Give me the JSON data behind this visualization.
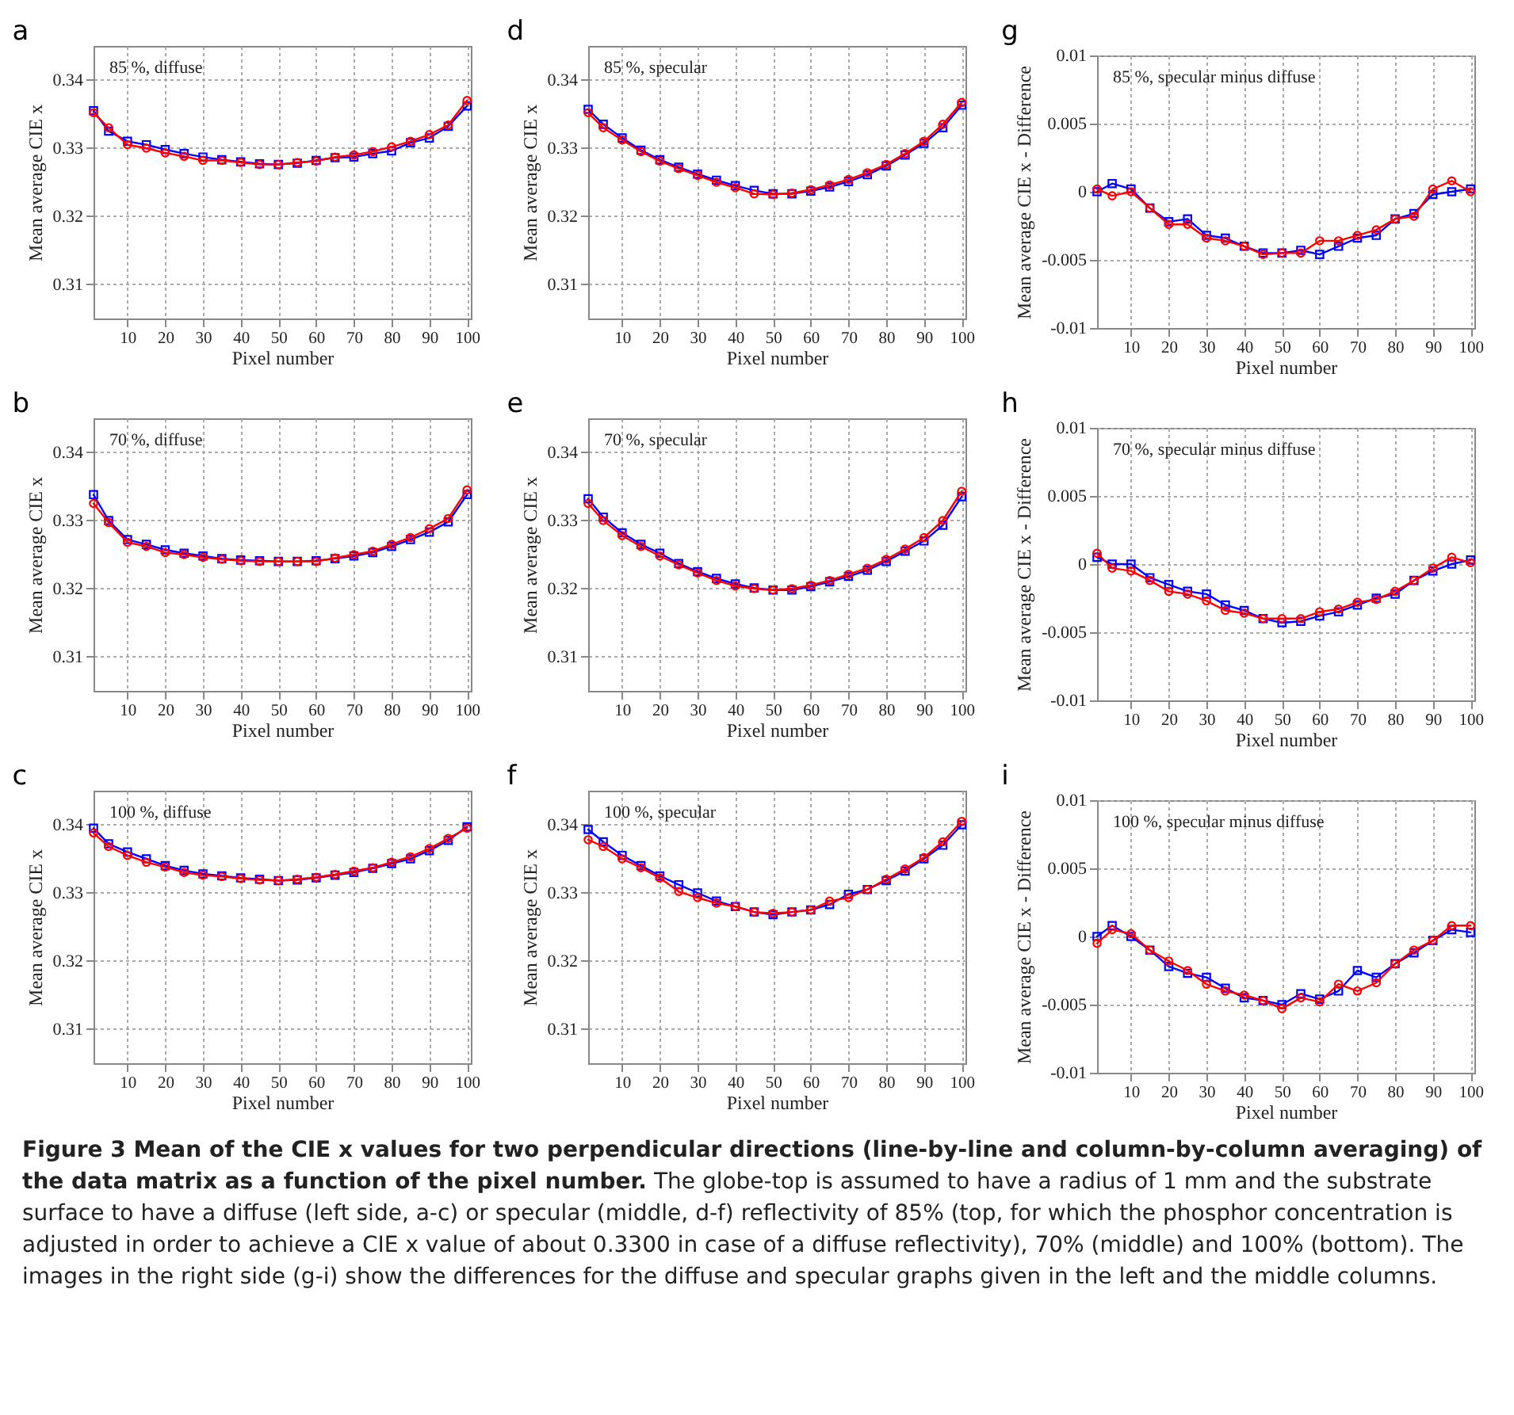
{
  "chart_data": [
    {
      "type": "line",
      "title": "a",
      "annotations": [
        "85 %, diffuse"
      ],
      "xlabel": "Pixel number",
      "ylabel": "Mean average CIE x",
      "xlim": [
        1,
        101
      ],
      "xticks": [
        10,
        20,
        30,
        40,
        50,
        60,
        70,
        80,
        90,
        100
      ],
      "ylim": [
        0.305,
        0.345
      ],
      "yticks": [
        0.31,
        0.32,
        0.33,
        0.34
      ],
      "grid": true,
      "line_style": "solid",
      "x": [
        1,
        5,
        10,
        15,
        20,
        25,
        30,
        35,
        40,
        45,
        50,
        55,
        60,
        65,
        70,
        75,
        80,
        85,
        90,
        95,
        100
      ],
      "series": [
        {
          "color": "#0000ff",
          "marker": "square",
          "values": [
            0.3355,
            0.3325,
            0.331,
            0.3305,
            0.3298,
            0.3292,
            0.3287,
            0.3283,
            0.328,
            0.3277,
            0.3276,
            0.3278,
            0.3282,
            0.3286,
            0.3287,
            0.3292,
            0.3296,
            0.3308,
            0.3315,
            0.3332,
            0.3362
          ]
        },
        {
          "color": "#ff0000",
          "marker": "circle",
          "values": [
            0.3352,
            0.333,
            0.3305,
            0.33,
            0.3293,
            0.3288,
            0.3282,
            0.3282,
            0.3279,
            0.3276,
            0.3276,
            0.3279,
            0.3281,
            0.3287,
            0.329,
            0.3295,
            0.3302,
            0.331,
            0.332,
            0.3334,
            0.337
          ]
        }
      ]
    },
    {
      "type": "line",
      "title": "d",
      "annotations": [
        "85 %, specular"
      ],
      "xlabel": "Pixel number",
      "ylabel": "Mean average CIE x",
      "xlim": [
        1,
        101
      ],
      "xticks": [
        10,
        20,
        30,
        40,
        50,
        60,
        70,
        80,
        90,
        100
      ],
      "ylim": [
        0.305,
        0.345
      ],
      "yticks": [
        0.31,
        0.32,
        0.33,
        0.34
      ],
      "grid": true,
      "line_style": "solid",
      "x": [
        1,
        5,
        10,
        15,
        20,
        25,
        30,
        35,
        40,
        45,
        50,
        55,
        60,
        65,
        70,
        75,
        80,
        85,
        90,
        95,
        100
      ],
      "series": [
        {
          "color": "#0000ff",
          "marker": "square",
          "values": [
            0.3357,
            0.3335,
            0.3315,
            0.3297,
            0.3283,
            0.3272,
            0.3262,
            0.3253,
            0.3245,
            0.3238,
            0.3233,
            0.3233,
            0.3237,
            0.3243,
            0.3251,
            0.3261,
            0.3274,
            0.329,
            0.3307,
            0.333,
            0.3363
          ]
        },
        {
          "color": "#ff0000",
          "marker": "circle",
          "values": [
            0.3352,
            0.333,
            0.3312,
            0.3295,
            0.3281,
            0.327,
            0.326,
            0.325,
            0.3242,
            0.3233,
            0.3232,
            0.3234,
            0.3239,
            0.3246,
            0.3254,
            0.3264,
            0.3276,
            0.3292,
            0.331,
            0.3335,
            0.3367
          ]
        }
      ]
    },
    {
      "type": "line",
      "title": "g",
      "annotations": [
        "85 %, specular minus diffuse"
      ],
      "xlabel": "Pixel number",
      "ylabel": "Mean average CIE x - Difference",
      "xlim": [
        1,
        101
      ],
      "xticks": [
        10,
        20,
        30,
        40,
        50,
        60,
        70,
        80,
        90,
        100
      ],
      "ylim": [
        -0.01,
        0.01
      ],
      "yticks": [
        -0.01,
        -0.005,
        0,
        0.005,
        0.01
      ],
      "grid": true,
      "line_style": "solid",
      "x": [
        1,
        5,
        10,
        15,
        20,
        25,
        30,
        35,
        40,
        45,
        50,
        55,
        60,
        65,
        70,
        75,
        80,
        85,
        90,
        95,
        100
      ],
      "series": [
        {
          "color": "#0000ff",
          "marker": "square",
          "values": [
            0,
            0.0006,
            0.0002,
            -0.0012,
            -0.0022,
            -0.002,
            -0.0032,
            -0.0034,
            -0.004,
            -0.0045,
            -0.0045,
            -0.0043,
            -0.0046,
            -0.004,
            -0.0034,
            -0.0032,
            -0.002,
            -0.0016,
            -0.0002,
            0,
            0.0002
          ]
        },
        {
          "color": "#ff0000",
          "marker": "circle",
          "values": [
            0.0002,
            -0.0003,
            0,
            -0.0012,
            -0.0024,
            -0.0024,
            -0.0034,
            -0.0036,
            -0.004,
            -0.0046,
            -0.0045,
            -0.0045,
            -0.0036,
            -0.0036,
            -0.0032,
            -0.0028,
            -0.002,
            -0.0018,
            0.0002,
            0.0008,
            0
          ]
        }
      ]
    },
    {
      "type": "line",
      "title": "b",
      "annotations": [
        "70 %, diffuse"
      ],
      "xlabel": "Pixel number",
      "ylabel": "Mean average CIE x",
      "xlim": [
        1,
        101
      ],
      "xticks": [
        10,
        20,
        30,
        40,
        50,
        60,
        70,
        80,
        90,
        100
      ],
      "ylim": [
        0.305,
        0.345
      ],
      "yticks": [
        0.31,
        0.32,
        0.33,
        0.34
      ],
      "grid": true,
      "line_style": "solid",
      "x": [
        1,
        5,
        10,
        15,
        20,
        25,
        30,
        35,
        40,
        45,
        50,
        55,
        60,
        65,
        70,
        75,
        80,
        85,
        90,
        95,
        100
      ],
      "series": [
        {
          "color": "#0000ff",
          "marker": "square",
          "values": [
            0.3338,
            0.33,
            0.3272,
            0.3265,
            0.3257,
            0.3252,
            0.3248,
            0.3244,
            0.3242,
            0.3241,
            0.324,
            0.324,
            0.3241,
            0.3244,
            0.3248,
            0.3253,
            0.3262,
            0.3272,
            0.3283,
            0.3298,
            0.3338
          ]
        },
        {
          "color": "#ff0000",
          "marker": "circle",
          "values": [
            0.3325,
            0.3297,
            0.3268,
            0.3262,
            0.3253,
            0.325,
            0.3246,
            0.3243,
            0.3241,
            0.324,
            0.324,
            0.324,
            0.324,
            0.3245,
            0.325,
            0.3255,
            0.3265,
            0.3275,
            0.3288,
            0.3303,
            0.3345
          ]
        }
      ]
    },
    {
      "type": "line",
      "title": "e",
      "annotations": [
        "70 %, specular"
      ],
      "xlabel": "Pixel number",
      "ylabel": "Mean average CIE x",
      "xlim": [
        1,
        101
      ],
      "xticks": [
        10,
        20,
        30,
        40,
        50,
        60,
        70,
        80,
        90,
        100
      ],
      "ylim": [
        0.305,
        0.345
      ],
      "yticks": [
        0.31,
        0.32,
        0.33,
        0.34
      ],
      "grid": true,
      "line_style": "solid",
      "x": [
        1,
        5,
        10,
        15,
        20,
        25,
        30,
        35,
        40,
        45,
        50,
        55,
        60,
        65,
        70,
        75,
        80,
        85,
        90,
        95,
        100
      ],
      "series": [
        {
          "color": "#0000ff",
          "marker": "square",
          "values": [
            0.3332,
            0.3305,
            0.3282,
            0.3265,
            0.3252,
            0.3237,
            0.3225,
            0.3215,
            0.3207,
            0.3201,
            0.3198,
            0.3198,
            0.3203,
            0.321,
            0.3218,
            0.3227,
            0.324,
            0.3255,
            0.327,
            0.3293,
            0.3335
          ]
        },
        {
          "color": "#ff0000",
          "marker": "circle",
          "values": [
            0.3325,
            0.33,
            0.3278,
            0.3262,
            0.3248,
            0.3235,
            0.3223,
            0.3212,
            0.3204,
            0.32,
            0.3198,
            0.32,
            0.3205,
            0.3212,
            0.3221,
            0.323,
            0.3243,
            0.3258,
            0.3275,
            0.33,
            0.3343
          ]
        }
      ]
    },
    {
      "type": "line",
      "title": "h",
      "annotations": [
        "70 %, specular minus diffuse"
      ],
      "xlabel": "Pixel number",
      "ylabel": "Mean average CIE x - Difference",
      "xlim": [
        1,
        101
      ],
      "xticks": [
        10,
        20,
        30,
        40,
        50,
        60,
        70,
        80,
        90,
        100
      ],
      "ylim": [
        -0.01,
        0.01
      ],
      "yticks": [
        -0.01,
        -0.005,
        0,
        0.005,
        0.01
      ],
      "grid": true,
      "line_style": "solid",
      "x": [
        1,
        5,
        10,
        15,
        20,
        25,
        30,
        35,
        40,
        45,
        50,
        55,
        60,
        65,
        70,
        75,
        80,
        85,
        90,
        95,
        100
      ],
      "series": [
        {
          "color": "#0000ff",
          "marker": "square",
          "values": [
            0.0005,
            0,
            0,
            -0.001,
            -0.0015,
            -0.002,
            -0.0022,
            -0.003,
            -0.0034,
            -0.004,
            -0.0043,
            -0.0042,
            -0.0038,
            -0.0035,
            -0.003,
            -0.0025,
            -0.0022,
            -0.0012,
            -0.0005,
            0,
            0.0003
          ]
        },
        {
          "color": "#ff0000",
          "marker": "circle",
          "values": [
            0.0008,
            -0.0003,
            -0.0005,
            -0.0012,
            -0.002,
            -0.0022,
            -0.0027,
            -0.0034,
            -0.0036,
            -0.004,
            -0.004,
            -0.004,
            -0.0035,
            -0.0033,
            -0.0028,
            -0.0026,
            -0.002,
            -0.0012,
            -0.0003,
            0.0005,
            0.0001
          ]
        }
      ]
    },
    {
      "type": "line",
      "title": "c",
      "annotations": [
        "100 %, diffuse"
      ],
      "xlabel": "Pixel number",
      "ylabel": "Mean average CIE x",
      "xlim": [
        1,
        101
      ],
      "xticks": [
        10,
        20,
        30,
        40,
        50,
        60,
        70,
        80,
        90,
        100
      ],
      "ylim": [
        0.305,
        0.345
      ],
      "yticks": [
        0.31,
        0.32,
        0.33,
        0.34
      ],
      "grid": true,
      "line_style": "solid",
      "x": [
        1,
        5,
        10,
        15,
        20,
        25,
        30,
        35,
        40,
        45,
        50,
        55,
        60,
        65,
        70,
        75,
        80,
        85,
        90,
        95,
        100
      ],
      "series": [
        {
          "color": "#0000ff",
          "marker": "square",
          "values": [
            0.3395,
            0.3372,
            0.336,
            0.335,
            0.334,
            0.3333,
            0.3328,
            0.3325,
            0.3322,
            0.332,
            0.3318,
            0.3319,
            0.3322,
            0.3326,
            0.333,
            0.3336,
            0.3343,
            0.335,
            0.3362,
            0.3377,
            0.3397
          ]
        },
        {
          "color": "#ff0000",
          "marker": "circle",
          "values": [
            0.3388,
            0.3368,
            0.3355,
            0.3345,
            0.3338,
            0.333,
            0.3326,
            0.3324,
            0.3321,
            0.3319,
            0.3318,
            0.332,
            0.3323,
            0.3327,
            0.3332,
            0.3337,
            0.3345,
            0.3353,
            0.3365,
            0.338,
            0.3395
          ]
        }
      ]
    },
    {
      "type": "line",
      "title": "f",
      "annotations": [
        "100 %, specular"
      ],
      "xlabel": "Pixel number",
      "ylabel": "Mean average CIE x",
      "xlim": [
        1,
        101
      ],
      "xticks": [
        10,
        20,
        30,
        40,
        50,
        60,
        70,
        80,
        90,
        100
      ],
      "ylim": [
        0.305,
        0.345
      ],
      "yticks": [
        0.31,
        0.32,
        0.33,
        0.34
      ],
      "grid": true,
      "line_style": "solid",
      "x": [
        1,
        5,
        10,
        15,
        20,
        25,
        30,
        35,
        40,
        45,
        50,
        55,
        60,
        65,
        70,
        75,
        80,
        85,
        90,
        95,
        100
      ],
      "series": [
        {
          "color": "#0000ff",
          "marker": "square",
          "values": [
            0.3393,
            0.3375,
            0.3355,
            0.334,
            0.3325,
            0.3312,
            0.33,
            0.3288,
            0.328,
            0.3272,
            0.3268,
            0.3272,
            0.3275,
            0.3283,
            0.3298,
            0.3305,
            0.3318,
            0.3332,
            0.335,
            0.337,
            0.34
          ]
        },
        {
          "color": "#ff0000",
          "marker": "circle",
          "values": [
            0.3378,
            0.3368,
            0.335,
            0.3337,
            0.3322,
            0.3302,
            0.3293,
            0.3285,
            0.328,
            0.3272,
            0.327,
            0.3272,
            0.3275,
            0.3288,
            0.3293,
            0.3305,
            0.332,
            0.3335,
            0.3352,
            0.3375,
            0.3405
          ]
        }
      ]
    },
    {
      "type": "line",
      "title": "i",
      "annotations": [
        "100 %, specular minus diffuse"
      ],
      "xlabel": "Pixel number",
      "ylabel": "Mean average CIE x - Difference",
      "xlim": [
        1,
        101
      ],
      "xticks": [
        10,
        20,
        30,
        40,
        50,
        60,
        70,
        80,
        90,
        100
      ],
      "ylim": [
        -0.01,
        0.01
      ],
      "yticks": [
        -0.01,
        -0.005,
        0,
        0.005,
        0.01
      ],
      "grid": true,
      "line_style": "solid",
      "x": [
        1,
        5,
        10,
        15,
        20,
        25,
        30,
        35,
        40,
        45,
        50,
        55,
        60,
        65,
        70,
        75,
        80,
        85,
        90,
        95,
        100
      ],
      "series": [
        {
          "color": "#0000ff",
          "marker": "square",
          "values": [
            0,
            0.0008,
            0,
            -0.001,
            -0.0022,
            -0.0027,
            -0.003,
            -0.0038,
            -0.0045,
            -0.0047,
            -0.005,
            -0.0042,
            -0.0046,
            -0.004,
            -0.0025,
            -0.003,
            -0.002,
            -0.0012,
            -0.0003,
            0.0005,
            0.0003
          ]
        },
        {
          "color": "#ff0000",
          "marker": "circle",
          "values": [
            -0.0005,
            0.0005,
            0.0002,
            -0.001,
            -0.0018,
            -0.0025,
            -0.0035,
            -0.004,
            -0.0043,
            -0.0047,
            -0.0053,
            -0.0045,
            -0.0048,
            -0.0035,
            -0.004,
            -0.0034,
            -0.002,
            -0.001,
            -0.0003,
            0.0008,
            0.0008
          ]
        }
      ]
    },
    {
      "type": "other",
      "title": "Figure 3 Mean of the CIE x values for two perpendicular directions (line-by-line and column-by-column averaging) of the data matrix as a function of the pixel number.",
      "annotations": [
        "The globe-top is assumed to have a radius of 1 mm and the substrate surface to have a diffuse (left side, a-c) or specular (middle, d-f) reflectivity of 85% (top, for which the phosphor concentration is adjusted in order to achieve a CIE x value of about 0.3300 in case of a diffuse reflectivity), 70% (middle) and 100% (bottom). The images in the right side (g-i) show the differences for the diffuse and specular graphs given in the left and the middle columns."
      ]
    }
  ]
}
